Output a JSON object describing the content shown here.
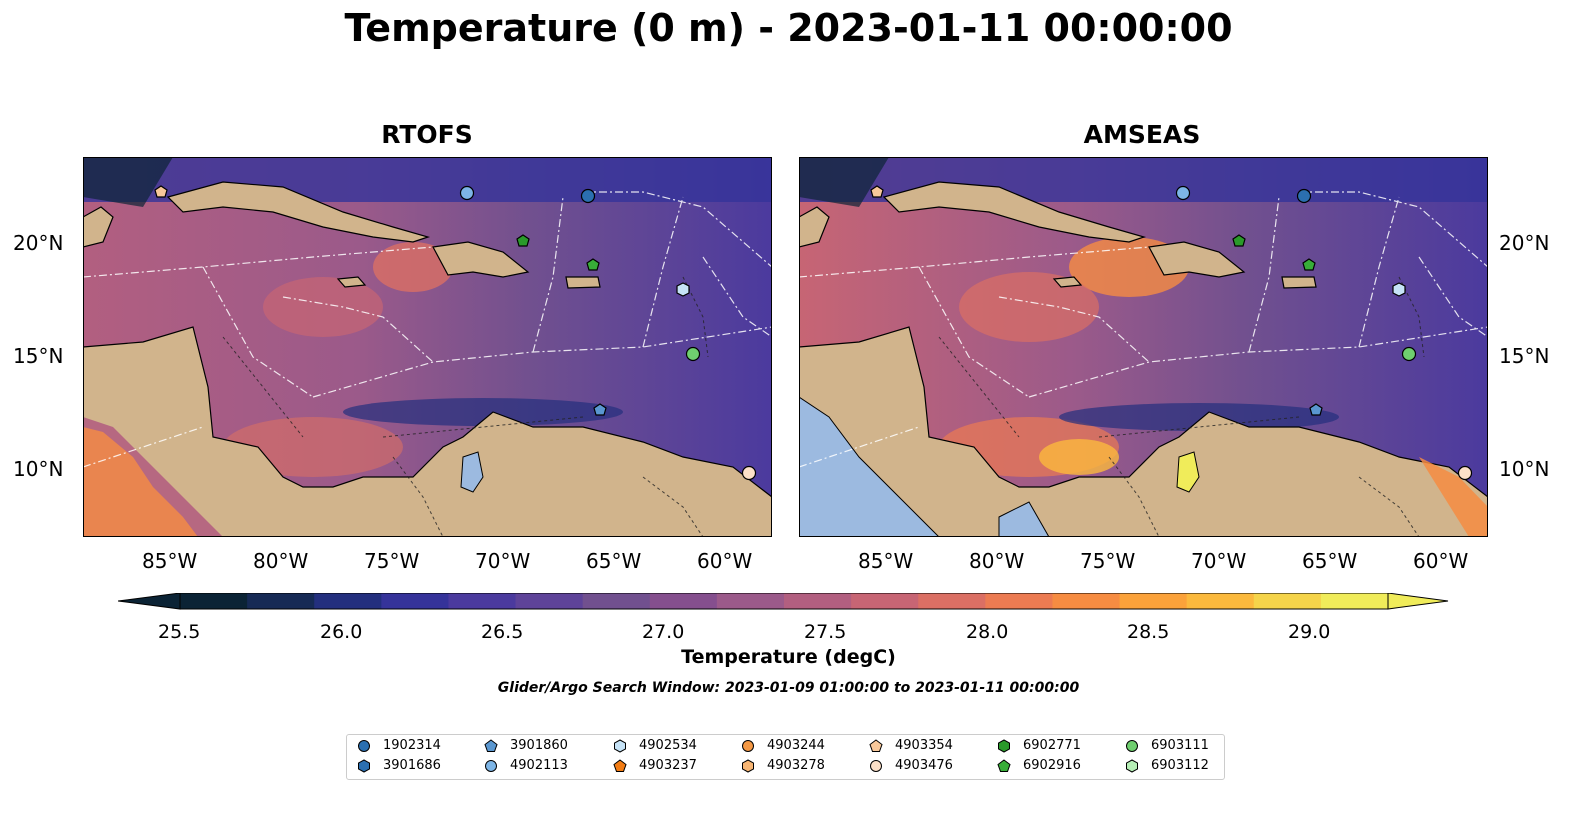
{
  "title": "Temperature (0 m) - 2023-01-11 00:00:00",
  "panels": [
    {
      "title": "RTOFS"
    },
    {
      "title": "AMSEAS"
    }
  ],
  "axes": {
    "x_ticks": [
      "85°W",
      "80°W",
      "75°W",
      "70°W",
      "65°W",
      "60°W"
    ],
    "y_ticks": [
      "20°N",
      "15°N",
      "10°N"
    ]
  },
  "colorbar": {
    "label": "Temperature (degC)",
    "ticks": [
      "25.5",
      "26.0",
      "26.5",
      "27.0",
      "27.5",
      "28.0",
      "28.5",
      "29.0"
    ],
    "colors": [
      "#0b2335",
      "#162a55",
      "#232f7e",
      "#35339a",
      "#4b3a9e",
      "#5e4399",
      "#71508f",
      "#854f8e",
      "#9b5a8a",
      "#b25f80",
      "#c76574",
      "#db6f64",
      "#ec7b52",
      "#f68c42",
      "#fba23a",
      "#fbb93d",
      "#f5d44a",
      "#f0ec5a"
    ]
  },
  "map_colors": {
    "land": "#d1b48c",
    "pacific": "#9cbae0"
  },
  "search_window": "Glider/Argo Search Window: 2023-01-09 01:00:00 to 2023-01-11 00:00:00",
  "legend": [
    {
      "id": "1902314",
      "marker": "circle",
      "color": "#2b6fb0"
    },
    {
      "id": "3901686",
      "marker": "hexagon",
      "color": "#2b6fb0"
    },
    {
      "id": "3901860",
      "marker": "pentagon",
      "color": "#5a97d0"
    },
    {
      "id": "4902113",
      "marker": "circle",
      "color": "#7db5e6"
    },
    {
      "id": "4902534",
      "marker": "hexagon",
      "color": "#c6e3f7"
    },
    {
      "id": "4903237",
      "marker": "pentagon",
      "color": "#f27c14"
    },
    {
      "id": "4903244",
      "marker": "circle",
      "color": "#f59945"
    },
    {
      "id": "4903278",
      "marker": "hexagon",
      "color": "#f8b674"
    },
    {
      "id": "4903354",
      "marker": "pentagon",
      "color": "#f8c89a"
    },
    {
      "id": "4903476",
      "marker": "circle",
      "color": "#fce0c8"
    },
    {
      "id": "6902771",
      "marker": "hexagon",
      "color": "#2a9a2a"
    },
    {
      "id": "6902916",
      "marker": "pentagon",
      "color": "#38ad38"
    },
    {
      "id": "6903111",
      "marker": "circle",
      "color": "#6fcf6f"
    },
    {
      "id": "6903112",
      "marker": "hexagon",
      "color": "#b6efb6"
    }
  ]
}
